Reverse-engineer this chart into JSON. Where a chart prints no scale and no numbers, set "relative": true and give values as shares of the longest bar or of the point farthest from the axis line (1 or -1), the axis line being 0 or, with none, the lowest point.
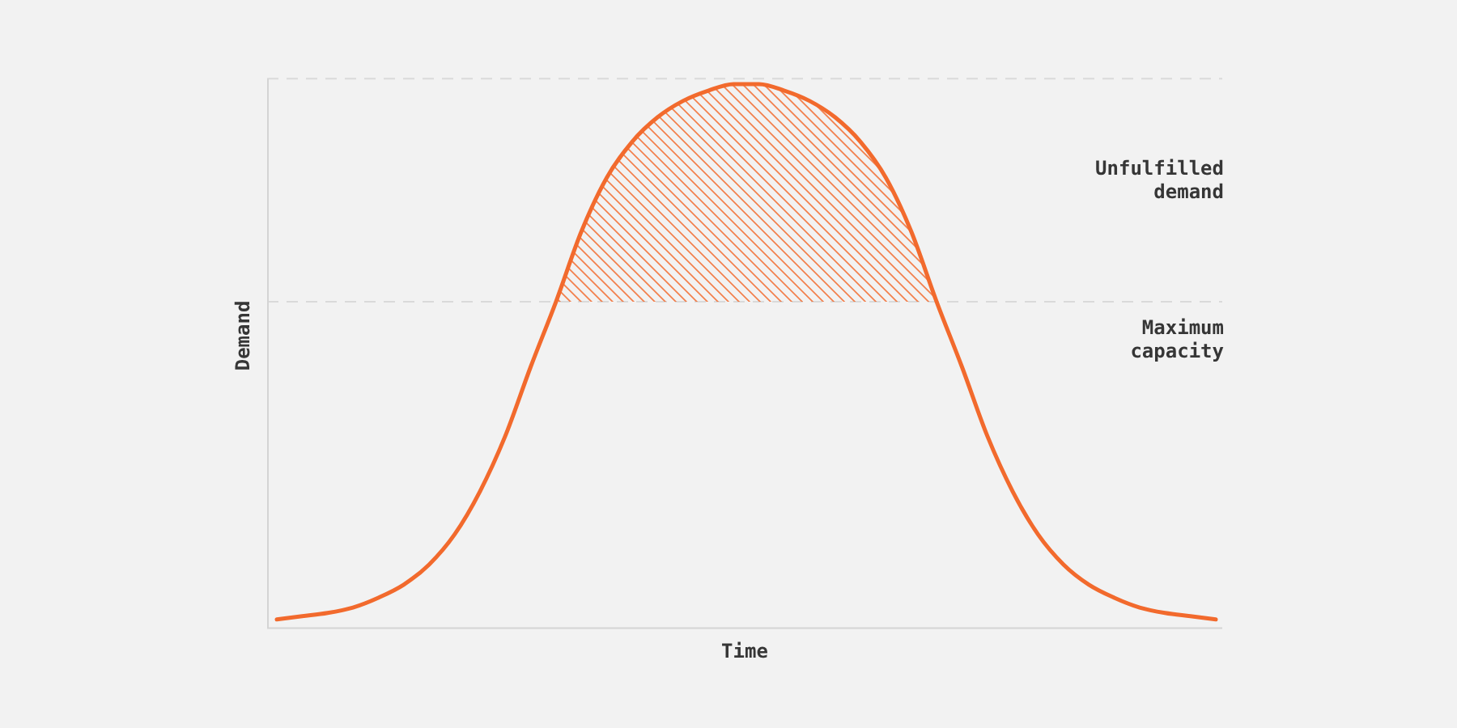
{
  "chart_data": {
    "type": "line",
    "xlabel": "Time",
    "ylabel": "Demand",
    "relative": true,
    "categories": [
      null,
      null,
      null,
      null,
      null,
      null,
      null,
      null,
      null,
      null,
      null,
      null,
      null,
      null,
      null,
      null,
      null,
      null,
      null,
      null,
      null,
      null,
      null,
      null,
      null,
      null,
      null,
      null,
      null,
      null,
      null,
      null,
      null,
      null,
      null,
      null,
      null,
      null
    ],
    "series": [
      {
        "color": "#f26a2d",
        "values": [
          0.016,
          0.022,
          0.028,
          0.038,
          0.056,
          0.08,
          0.117,
          0.172,
          0.251,
          0.353,
          0.48,
          0.6,
          0.729,
          0.828,
          0.894,
          0.939,
          0.969,
          0.988,
          1,
          1,
          0.988,
          0.969,
          0.939,
          0.894,
          0.828,
          0.729,
          0.6,
          0.48,
          0.353,
          0.251,
          0.172,
          0.117,
          0.08,
          0.056,
          0.038,
          0.028,
          0.022,
          0.016
        ],
        "lower": [
          null,
          null,
          null,
          null,
          null,
          null,
          null,
          null,
          null,
          null,
          null,
          0.6,
          0.6,
          0.6,
          0.6,
          0.6,
          0.6,
          0.6,
          0.6,
          0.6,
          0.6,
          0.6,
          0.6,
          0.6,
          0.6,
          0.6,
          0.6,
          null,
          null,
          null,
          null,
          null,
          null,
          null,
          null,
          null,
          null,
          null
        ],
        "upper": [
          null,
          null,
          null,
          null,
          null,
          null,
          null,
          null,
          null,
          null,
          null,
          0.6,
          0.729,
          0.828,
          0.894,
          0.939,
          0.969,
          0.988,
          1,
          1,
          0.988,
          0.969,
          0.939,
          0.894,
          0.828,
          0.729,
          0.6,
          null,
          null,
          null,
          null,
          null,
          null,
          null,
          null,
          null,
          null,
          null
        ]
      }
    ],
    "ref_lines": [
      {
        "axis": "y",
        "value": 1.01,
        "color": "#dadada",
        "line_style": "dashed"
      },
      {
        "axis": "y",
        "value": 0.6,
        "label": "Maximum capacity",
        "color": "#dadada",
        "line_style": "dashed"
      }
    ],
    "annotations": [
      "Unfulfilled demand"
    ]
  }
}
